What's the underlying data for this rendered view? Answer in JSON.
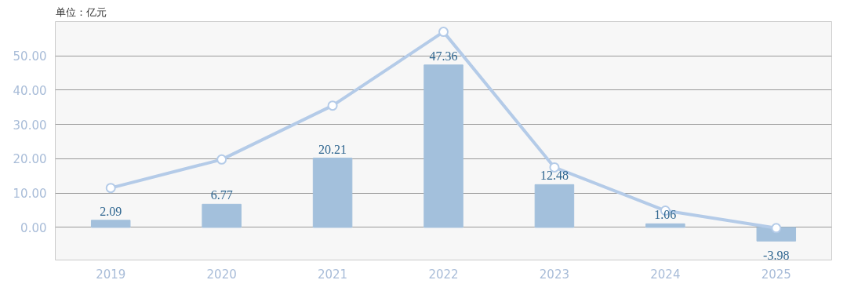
{
  "chart_data": {
    "type": "bar",
    "ylabel": "单位：亿元",
    "categories": [
      "2019",
      "2020",
      "2021",
      "2022",
      "2023",
      "2024",
      "2025"
    ],
    "series": [
      {
        "color": "#a3c0dc",
        "values": [
          2.09,
          6.77,
          20.21,
          47.36,
          12.48,
          1.06,
          -3.98
        ],
        "data_labels": true
      },
      {
        "type": "line",
        "color": "#b4cbe8",
        "values": [
          11.5,
          19.8,
          35.5,
          57.0,
          17.5,
          4.9,
          -0.2
        ],
        "marker": "circle"
      }
    ],
    "ylim": [
      -9.5,
      60
    ],
    "yticks": [
      {
        "value": 0,
        "label": "0.00"
      },
      {
        "value": 10,
        "label": "10.00"
      },
      {
        "value": 20,
        "label": "20.00"
      },
      {
        "value": 30,
        "label": "30.00"
      },
      {
        "value": 40,
        "label": "40.00"
      },
      {
        "value": 50,
        "label": "50.00"
      }
    ],
    "grid": "y"
  }
}
